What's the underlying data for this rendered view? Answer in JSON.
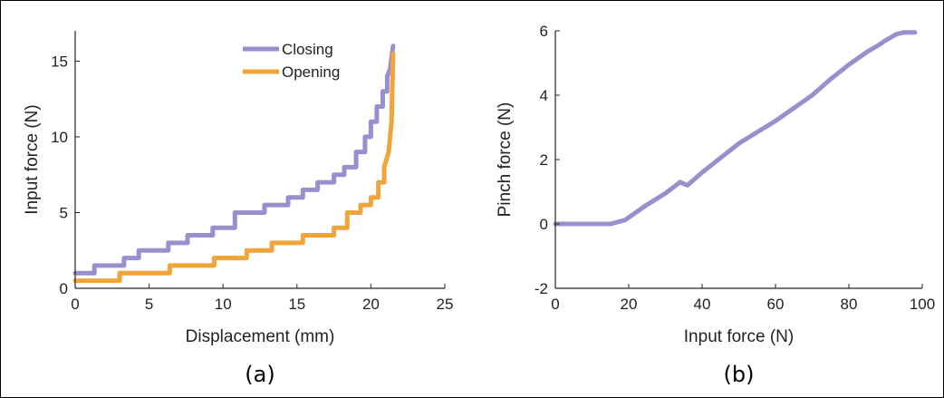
{
  "colors": {
    "closing": "#9a8fce",
    "opening": "#f0a43a",
    "axis": "#262626"
  },
  "chart_data": [
    {
      "type": "line",
      "panel_label": "(a)",
      "xlabel": "Displacement (mm)",
      "ylabel": "Input force (N)",
      "xlim": [
        0,
        25
      ],
      "ylim": [
        0,
        17
      ],
      "xticks": [
        0,
        5,
        10,
        15,
        20,
        25
      ],
      "yticks": [
        0,
        5,
        10,
        15
      ],
      "grid": false,
      "legend": "top-center",
      "series": [
        {
          "name": "Closing",
          "color": "#9a8fce",
          "x": [
            0,
            1.3,
            1.3,
            3.3,
            3.3,
            4.3,
            4.3,
            6.3,
            6.3,
            7.6,
            7.6,
            9.3,
            9.3,
            10.8,
            10.8,
            12.8,
            12.8,
            14.4,
            14.4,
            15.4,
            15.4,
            16.4,
            16.4,
            17.5,
            17.5,
            18.2,
            18.2,
            19.0,
            19.0,
            19.6,
            19.6,
            20.0,
            20.0,
            20.4,
            20.4,
            20.8,
            20.8,
            21.1,
            21.1,
            21.3,
            21.5
          ],
          "y": [
            1.0,
            1.0,
            1.5,
            1.5,
            2.0,
            2.0,
            2.5,
            2.5,
            3.0,
            3.0,
            3.5,
            3.5,
            4.0,
            4.0,
            5.0,
            5.0,
            5.5,
            5.5,
            6.0,
            6.0,
            6.5,
            6.5,
            7.0,
            7.0,
            7.5,
            7.5,
            8.0,
            8.0,
            9.0,
            9.0,
            10.0,
            10.0,
            11.0,
            11.0,
            12.0,
            12.0,
            13.0,
            13.0,
            14.0,
            14.5,
            16.0
          ]
        },
        {
          "name": "Opening",
          "color": "#f0a43a",
          "x": [
            0,
            3.0,
            3.0,
            6.4,
            6.4,
            9.4,
            9.4,
            11.6,
            11.6,
            13.3,
            13.3,
            15.4,
            15.4,
            17.5,
            17.5,
            18.4,
            18.4,
            19.3,
            19.3,
            20.0,
            20.0,
            20.5,
            20.5,
            20.9,
            20.9,
            21.2,
            21.4,
            21.5
          ],
          "y": [
            0.5,
            0.5,
            1.0,
            1.0,
            1.5,
            1.5,
            2.0,
            2.0,
            2.5,
            2.5,
            3.0,
            3.0,
            3.5,
            3.5,
            4.0,
            4.0,
            5.0,
            5.0,
            5.5,
            5.5,
            6.0,
            6.0,
            7.0,
            7.0,
            8.0,
            9.0,
            11.0,
            15.5
          ]
        }
      ]
    },
    {
      "type": "line",
      "panel_label": "(b)",
      "xlabel": "Input force (N)",
      "ylabel": "Pinch force (N)",
      "xlim": [
        0,
        100
      ],
      "ylim": [
        -2,
        6
      ],
      "xticks": [
        0,
        20,
        40,
        60,
        80,
        100
      ],
      "yticks": [
        -2,
        0,
        2,
        4,
        6
      ],
      "grid": false,
      "series": [
        {
          "color": "#9a8fce",
          "x": [
            0,
            15,
            19,
            25,
            30,
            34,
            36,
            40,
            45,
            50,
            55,
            60,
            65,
            70,
            75,
            80,
            85,
            88,
            90,
            93,
            95,
            98
          ],
          "y": [
            0,
            0,
            0.12,
            0.6,
            0.95,
            1.3,
            1.2,
            1.6,
            2.05,
            2.5,
            2.85,
            3.2,
            3.6,
            4.0,
            4.5,
            4.95,
            5.35,
            5.55,
            5.7,
            5.9,
            5.95,
            5.95
          ]
        }
      ]
    }
  ]
}
